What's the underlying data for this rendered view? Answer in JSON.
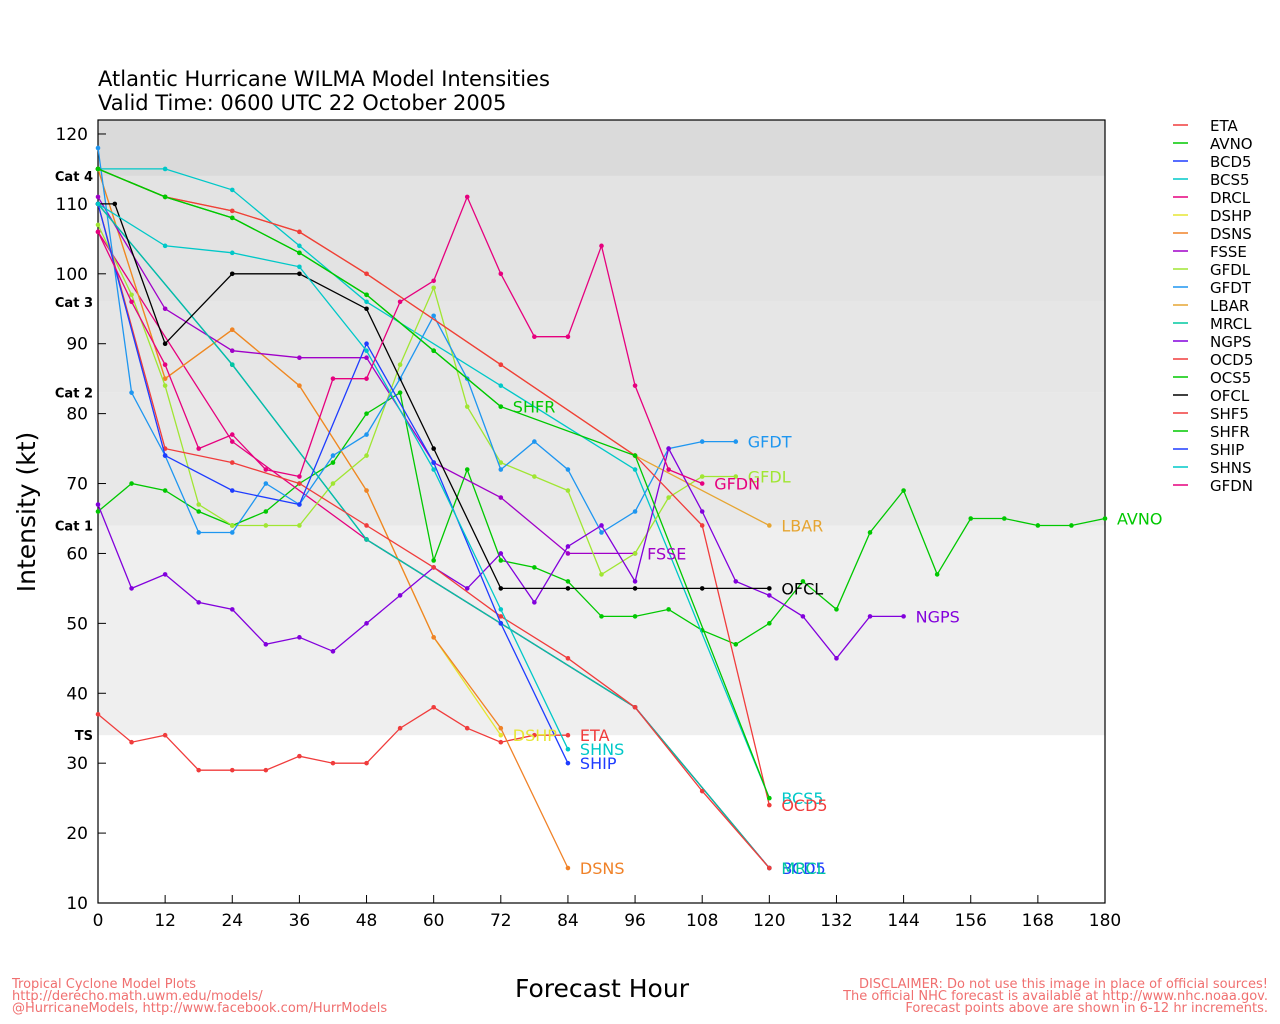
{
  "chart_data": {
    "type": "line",
    "title": "Atlantic Hurricane WILMA Model Intensities",
    "subtitle": "Valid Time: 0600 UTC 22 October 2005",
    "xlabel": "Forecast Hour",
    "ylabel": "Intensity (kt)",
    "xlim": [
      0,
      180
    ],
    "ylim": [
      10,
      122
    ],
    "x_ticks": [
      0,
      12,
      24,
      36,
      48,
      60,
      72,
      84,
      96,
      108,
      120,
      132,
      144,
      156,
      168,
      180
    ],
    "y_ticks": [
      10,
      20,
      30,
      40,
      50,
      60,
      70,
      80,
      90,
      100,
      110,
      120
    ],
    "grid": false,
    "legend_position": "right",
    "categories": [
      {
        "label": "TS",
        "value": 34,
        "top": 64,
        "fill": "#efefef"
      },
      {
        "label": "Cat 1",
        "value": 64,
        "top": 83,
        "fill": "#e8e8e8"
      },
      {
        "label": "Cat 2",
        "value": 83,
        "top": 96,
        "fill": "#e6e6e6"
      },
      {
        "label": "Cat 3",
        "value": 96,
        "top": 114,
        "fill": "#e3e3e3"
      },
      {
        "label": "Cat 4",
        "value": 114,
        "top": 122,
        "fill": "#dadada"
      }
    ],
    "series": [
      {
        "name": "ETA",
        "color": "#f03c3c",
        "label": "ETA",
        "x": [
          0,
          6,
          12,
          18,
          24,
          30,
          36,
          42,
          48,
          54,
          60,
          66,
          72,
          78,
          84
        ],
        "y": [
          37,
          33,
          34,
          29,
          29,
          29,
          31,
          30,
          30,
          35,
          38,
          35,
          33,
          34,
          34
        ]
      },
      {
        "name": "AVNO",
        "color": "#00c800",
        "label": "AVNO",
        "x": [
          0,
          6,
          12,
          18,
          24,
          30,
          36,
          42,
          48,
          54,
          60,
          66,
          72,
          78,
          84,
          90,
          96,
          102,
          108,
          114,
          120,
          126,
          132,
          138,
          144,
          150,
          156,
          162,
          168,
          174,
          180
        ],
        "y": [
          66,
          70,
          69,
          66,
          64,
          66,
          70,
          73,
          80,
          83,
          59,
          72,
          59,
          58,
          56,
          51,
          51,
          52,
          49,
          47,
          50,
          56,
          52,
          63,
          69,
          57,
          65,
          65,
          64,
          64,
          65
        ]
      },
      {
        "name": "BCD5",
        "color": "#1e3cff",
        "label": "BCD5",
        "x": [
          0,
          24,
          48,
          96,
          120
        ],
        "y": [
          110,
          87,
          62,
          38,
          15
        ]
      },
      {
        "name": "BCS5",
        "color": "#00c8c8",
        "label": "BCS5",
        "x": [
          0,
          12,
          24,
          36,
          48,
          72,
          96,
          120
        ],
        "y": [
          115,
          115,
          112,
          104,
          96,
          84,
          72,
          25
        ]
      },
      {
        "name": "DRCL",
        "color": "#e6007e",
        "label": "",
        "x": [
          0,
          24,
          48,
          72,
          96,
          120
        ],
        "y": [
          106,
          76,
          62,
          50,
          38,
          15
        ]
      },
      {
        "name": "DSHP",
        "color": "#e6e632",
        "label": "DSHP",
        "x": [
          0,
          12,
          24,
          36,
          48,
          60,
          72
        ],
        "y": [
          115,
          85,
          92,
          84,
          69,
          48,
          34
        ]
      },
      {
        "name": "DSNS",
        "color": "#f08228",
        "label": "DSNS",
        "x": [
          0,
          12,
          24,
          36,
          48,
          60,
          72,
          84
        ],
        "y": [
          115,
          85,
          92,
          84,
          69,
          48,
          35,
          15
        ]
      },
      {
        "name": "FSSE",
        "color": "#a000c8",
        "label": "FSSE",
        "x": [
          0,
          12,
          24,
          36,
          48,
          60,
          72,
          84,
          96
        ],
        "y": [
          111,
          95,
          89,
          88,
          88,
          73,
          68,
          60,
          60
        ]
      },
      {
        "name": "GFDL",
        "color": "#a0e632",
        "label": "GFDL",
        "x": [
          0,
          6,
          12,
          18,
          24,
          30,
          36,
          42,
          48,
          54,
          60,
          66,
          72,
          78,
          84,
          90,
          96,
          102,
          108,
          114
        ],
        "y": [
          107,
          97,
          84,
          67,
          64,
          64,
          64,
          70,
          74,
          87,
          98,
          81,
          73,
          71,
          69,
          57,
          60,
          68,
          71,
          71
        ]
      },
      {
        "name": "GFDT",
        "color": "#1e96f0",
        "label": "GFDT",
        "x": [
          0,
          6,
          12,
          18,
          24,
          30,
          36,
          42,
          48,
          54,
          60,
          66,
          72,
          78,
          84,
          90,
          96,
          102,
          108,
          114
        ],
        "y": [
          118,
          83,
          74,
          63,
          63,
          70,
          67,
          74,
          77,
          85,
          94,
          85,
          72,
          76,
          72,
          63,
          66,
          75,
          76,
          76
        ]
      },
      {
        "name": "LBAR",
        "color": "#e6a532",
        "label": "LBAR",
        "x": [
          0,
          12,
          24,
          36,
          48,
          72,
          96,
          120
        ],
        "y": [
          115,
          111,
          109,
          106,
          100,
          87,
          74,
          64
        ]
      },
      {
        "name": "MRCL",
        "color": "#00c8a0",
        "label": "MRCL",
        "x": [
          0,
          24,
          48,
          72,
          96,
          120
        ],
        "y": [
          110,
          87,
          62,
          50,
          38,
          15
        ]
      },
      {
        "name": "NGPS",
        "color": "#8200dc",
        "label": "NGPS",
        "x": [
          0,
          6,
          12,
          18,
          24,
          30,
          36,
          42,
          48,
          54,
          60,
          66,
          72,
          78,
          84,
          90,
          96,
          102,
          108,
          114,
          120,
          126,
          132,
          138,
          144
        ],
        "y": [
          67,
          55,
          57,
          53,
          52,
          47,
          48,
          46,
          50,
          54,
          58,
          55,
          60,
          53,
          61,
          64,
          56,
          75,
          66,
          56,
          54,
          51,
          45,
          51,
          51
        ]
      },
      {
        "name": "OCD5",
        "color": "#f03c3c",
        "label": "OCD5",
        "x": [
          0,
          12,
          24,
          36,
          48,
          72,
          96,
          108,
          120
        ],
        "y": [
          115,
          111,
          109,
          106,
          100,
          87,
          74,
          64,
          24
        ]
      },
      {
        "name": "OCS5",
        "color": "#00c800",
        "label": "",
        "x": [
          0,
          12,
          24,
          36,
          48,
          60,
          72,
          96,
          120
        ],
        "y": [
          115,
          111,
          108,
          103,
          97,
          89,
          81,
          74,
          25
        ]
      },
      {
        "name": "OFCL",
        "color": "#000000",
        "label": "OFCL",
        "x": [
          0,
          3,
          12,
          24,
          36,
          48,
          60,
          72,
          84,
          96,
          108,
          120
        ],
        "y": [
          110,
          110,
          90,
          100,
          100,
          95,
          75,
          55,
          55,
          55,
          55,
          55
        ]
      },
      {
        "name": "SHF5",
        "color": "#f03c3c",
        "label": "",
        "x": [
          0,
          12,
          24,
          36,
          48,
          60,
          72,
          84,
          96,
          108,
          120
        ],
        "y": [
          110,
          75,
          73,
          70,
          64,
          58,
          51,
          45,
          38,
          26,
          15
        ]
      },
      {
        "name": "SHFR",
        "color": "#00c800",
        "label": "SHFR",
        "x": [
          0,
          12,
          24,
          36,
          48,
          60,
          72
        ],
        "y": [
          115,
          111,
          108,
          103,
          97,
          89,
          81
        ]
      },
      {
        "name": "SHIP",
        "color": "#1e3cff",
        "label": "SHIP",
        "x": [
          0,
          12,
          24,
          36,
          48,
          60,
          72,
          84
        ],
        "y": [
          110,
          74,
          69,
          67,
          90,
          73,
          50,
          30
        ]
      },
      {
        "name": "SHNS",
        "color": "#00c8c8",
        "label": "SHNS",
        "x": [
          0,
          12,
          24,
          36,
          48,
          60,
          72,
          84
        ],
        "y": [
          110,
          104,
          103,
          101,
          89,
          72,
          52,
          32
        ]
      },
      {
        "name": "GFDN",
        "color": "#e6007e",
        "label": "GFDN",
        "x": [
          0,
          6,
          12,
          18,
          24,
          30,
          36,
          42,
          48,
          54,
          60,
          66,
          72,
          78,
          84,
          90,
          96,
          102,
          108
        ],
        "y": [
          106,
          96,
          87,
          75,
          77,
          72,
          71,
          85,
          85,
          96,
          99,
          111,
          100,
          91,
          91,
          104,
          84,
          72,
          70
        ]
      }
    ]
  },
  "footer": {
    "left_1": "Tropical Cyclone Model Plots",
    "left_2": "http://derecho.math.uwm.edu/models/",
    "left_3": "@HurricaneModels, http://www.facebook.com/HurrModels",
    "right_1": "DISCLAIMER: Do not use this image in place of official sources!",
    "right_2": "The official NHC forecast is available at http://www.nhc.noaa.gov.",
    "right_3": "Forecast points above are shown in 6-12 hr increments."
  }
}
